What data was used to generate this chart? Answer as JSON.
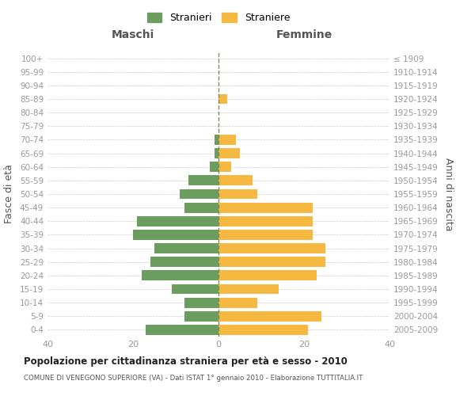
{
  "age_groups": [
    "0-4",
    "5-9",
    "10-14",
    "15-19",
    "20-24",
    "25-29",
    "30-34",
    "35-39",
    "40-44",
    "45-49",
    "50-54",
    "55-59",
    "60-64",
    "65-69",
    "70-74",
    "75-79",
    "80-84",
    "85-89",
    "90-94",
    "95-99",
    "100+"
  ],
  "birth_years": [
    "2005-2009",
    "2000-2004",
    "1995-1999",
    "1990-1994",
    "1985-1989",
    "1980-1984",
    "1975-1979",
    "1970-1974",
    "1965-1969",
    "1960-1964",
    "1955-1959",
    "1950-1954",
    "1945-1949",
    "1940-1944",
    "1935-1939",
    "1930-1934",
    "1925-1929",
    "1920-1924",
    "1915-1919",
    "1910-1914",
    "≤ 1909"
  ],
  "maschi": [
    17,
    8,
    8,
    11,
    18,
    16,
    15,
    20,
    19,
    8,
    9,
    7,
    2,
    1,
    1,
    0,
    0,
    0,
    0,
    0,
    0
  ],
  "femmine": [
    21,
    24,
    9,
    14,
    23,
    25,
    25,
    22,
    22,
    22,
    9,
    8,
    3,
    5,
    4,
    0,
    0,
    2,
    0,
    0,
    0
  ],
  "color_maschi": "#6b9e5e",
  "color_femmine": "#f5b942",
  "title1": "Popolazione per cittadinanza straniera per età e sesso - 2010",
  "title2": "COMUNE DI VENEGONO SUPERIORE (VA) - Dati ISTAT 1° gennaio 2010 - Elaborazione TUTTITALIA.IT",
  "xlabel_left": "Maschi",
  "xlabel_right": "Femmine",
  "ylabel_left": "Fasce di età",
  "ylabel_right": "Anni di nascita",
  "xlim": 40,
  "legend_stranieri": "Stranieri",
  "legend_straniere": "Straniere",
  "background_color": "#ffffff",
  "grid_color": "#cccccc",
  "tick_color": "#999999",
  "label_color": "#555555",
  "vline_color": "#888855"
}
